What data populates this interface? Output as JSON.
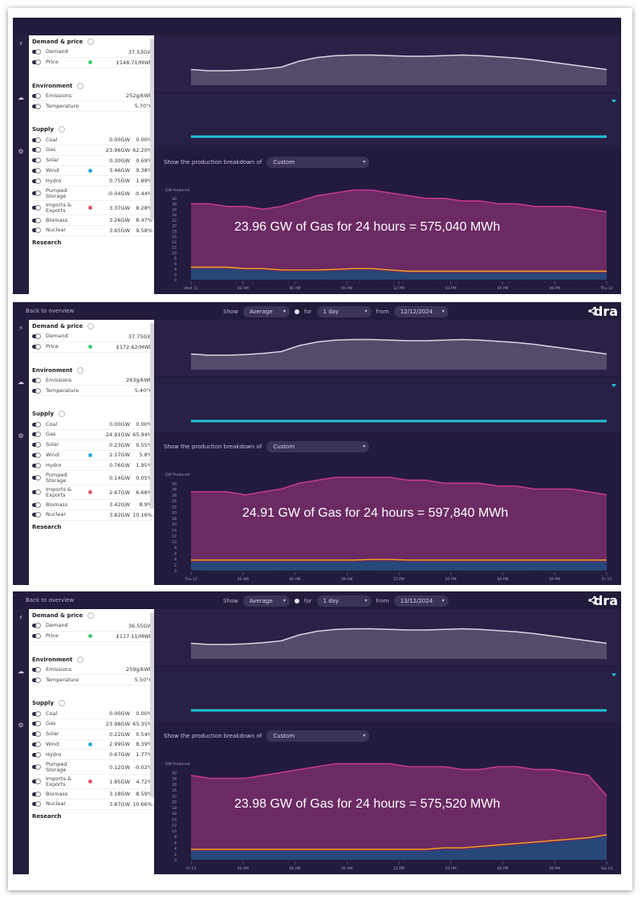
{
  "colors": {
    "gas": "#c2378f",
    "gas_fill": "#6b2a63",
    "solar": "#f4a51c",
    "wind": "#2aa8e0",
    "nuclear": "#1f3a6b",
    "demand": "#d9d5e2",
    "temperature": "#1fc3d8"
  },
  "panels": [
    {
      "show_controls": false,
      "sidebar": {
        "demand_title": "Demand & price",
        "demand": {
          "label": "Demand",
          "value": "37.53GW"
        },
        "price": {
          "label": "Price",
          "value": "£148.71/MWh"
        },
        "env_title": "Environment",
        "emissions": {
          "label": "Emissions",
          "value": "252g/kWh"
        },
        "temperature": {
          "label": "Temperature",
          "value": "5.70°C"
        },
        "supply_title": "Supply",
        "supply": [
          {
            "label": "Coal",
            "v1": "0.00GW",
            "v2": "0.00%"
          },
          {
            "label": "Gas",
            "v1": "23.96GW",
            "v2": "62.20%"
          },
          {
            "label": "Solar",
            "v1": "0.30GW",
            "v2": "0.69%"
          },
          {
            "label": "Wind",
            "v1": "3.46GW",
            "v2": "9.38%"
          },
          {
            "label": "Hydro",
            "v1": "0.75GW",
            "v2": "1.89%"
          },
          {
            "label": "Pumped Storage",
            "v1": "-0.04GW",
            "v2": "-0.44%"
          },
          {
            "label": "Imports & Exports",
            "v1": "3.37GW",
            "v2": "8.28%"
          },
          {
            "label": "Biomass",
            "v1": "3.26GW",
            "v2": "8.47%"
          },
          {
            "label": "Nuclear",
            "v1": "3.65GW",
            "v2": "9.58%"
          }
        ],
        "research": "Research"
      },
      "breakdown_label": "Show the production breakdown of",
      "breakdown_value": "Custom",
      "y_label": "GW Produced",
      "overlay": "23.96  GW of Gas for 24 hours =  575,040  MWh",
      "x_labels": [
        "Wed 11",
        "03 AM",
        "06 AM",
        "09 AM",
        "12 PM",
        "03 PM",
        "06 PM",
        "09 PM",
        "Thu 12"
      ]
    },
    {
      "show_controls": true,
      "topbar": {
        "back": "Back to overview",
        "show": "Show",
        "show_value": "Average",
        "for": "for",
        "for_value": "1 day",
        "from": "from",
        "date": "12/12/2024",
        "brand": "dra"
      },
      "sidebar": {
        "demand_title": "Demand & price",
        "demand": {
          "label": "Demand",
          "value": "37.75GW"
        },
        "price": {
          "label": "Price",
          "value": "£172.62/MWh"
        },
        "env_title": "Environment",
        "emissions": {
          "label": "Emissions",
          "value": "263g/kWh"
        },
        "temperature": {
          "label": "Temperature",
          "value": "5.40°C"
        },
        "supply_title": "Supply",
        "supply": [
          {
            "label": "Coal",
            "v1": "0.00GW",
            "v2": "0.00%"
          },
          {
            "label": "Gas",
            "v1": "24.91GW",
            "v2": "65.94%"
          },
          {
            "label": "Solar",
            "v1": "0.23GW",
            "v2": "0.55%"
          },
          {
            "label": "Wind",
            "v1": "2.17GW",
            "v2": "5.8%"
          },
          {
            "label": "Hydro",
            "v1": "0.76GW",
            "v2": "1.95%"
          },
          {
            "label": "Pumped Storage",
            "v1": "0.14GW",
            "v2": "0.05%"
          },
          {
            "label": "Imports & Exports",
            "v1": "2.67GW",
            "v2": "6.68%"
          },
          {
            "label": "Biomass",
            "v1": "3.42GW",
            "v2": "8.9%"
          },
          {
            "label": "Nuclear",
            "v1": "3.82GW",
            "v2": "10.16%"
          }
        ],
        "research": "Research"
      },
      "breakdown_label": "Show the production breakdown of",
      "breakdown_value": "Custom",
      "y_label": "GW Produced",
      "overlay": "24.91  GW of Gas for 24 hours =  597,840  MWh",
      "x_labels": [
        "Thu 12",
        "03 AM",
        "06 AM",
        "09 AM",
        "12 PM",
        "03 PM",
        "06 PM",
        "09 PM",
        "Fri 13"
      ]
    },
    {
      "show_controls": true,
      "topbar": {
        "back": "Back to overview",
        "show": "Show",
        "show_value": "Average",
        "for": "for",
        "for_value": "1 day",
        "from": "from",
        "date": "13/12/2024",
        "brand": "dra"
      },
      "sidebar": {
        "demand_title": "Demand & price",
        "demand": {
          "label": "Demand",
          "value": "36.55GW"
        },
        "price": {
          "label": "Price",
          "value": "£117.11/MWh"
        },
        "env_title": "Environment",
        "emissions": {
          "label": "Emissions",
          "value": "259g/kWh"
        },
        "temperature": {
          "label": "Temperature",
          "value": "5.50°C"
        },
        "supply_title": "Supply",
        "supply": [
          {
            "label": "Coal",
            "v1": "0.00GW",
            "v2": "0.00%"
          },
          {
            "label": "Gas",
            "v1": "23.98GW",
            "v2": "65.35%"
          },
          {
            "label": "Solar",
            "v1": "0.22GW",
            "v2": "0.54%"
          },
          {
            "label": "Wind",
            "v1": "2.99GW",
            "v2": "8.39%"
          },
          {
            "label": "Hydro",
            "v1": "0.67GW",
            "v2": "1.77%"
          },
          {
            "label": "Pumped Storage",
            "v1": "0.12GW",
            "v2": "-0.02%"
          },
          {
            "label": "Imports & Exports",
            "v1": "1.85GW",
            "v2": "4.72%"
          },
          {
            "label": "Biomass",
            "v1": "3.18GW",
            "v2": "8.59%"
          },
          {
            "label": "Nuclear",
            "v1": "3.87GW",
            "v2": "10.66%"
          }
        ],
        "research": "Research"
      },
      "breakdown_label": "Show the production breakdown of",
      "breakdown_value": "Custom",
      "y_label": "GW Produced",
      "overlay": "23.98  GW of Gas for 24 hours =  575,520  MWh",
      "x_labels": [
        "Fri 13",
        "03 AM",
        "06 AM",
        "09 AM",
        "12 PM",
        "03 PM",
        "06 PM",
        "09 PM",
        "Sat 14"
      ]
    }
  ]
}
